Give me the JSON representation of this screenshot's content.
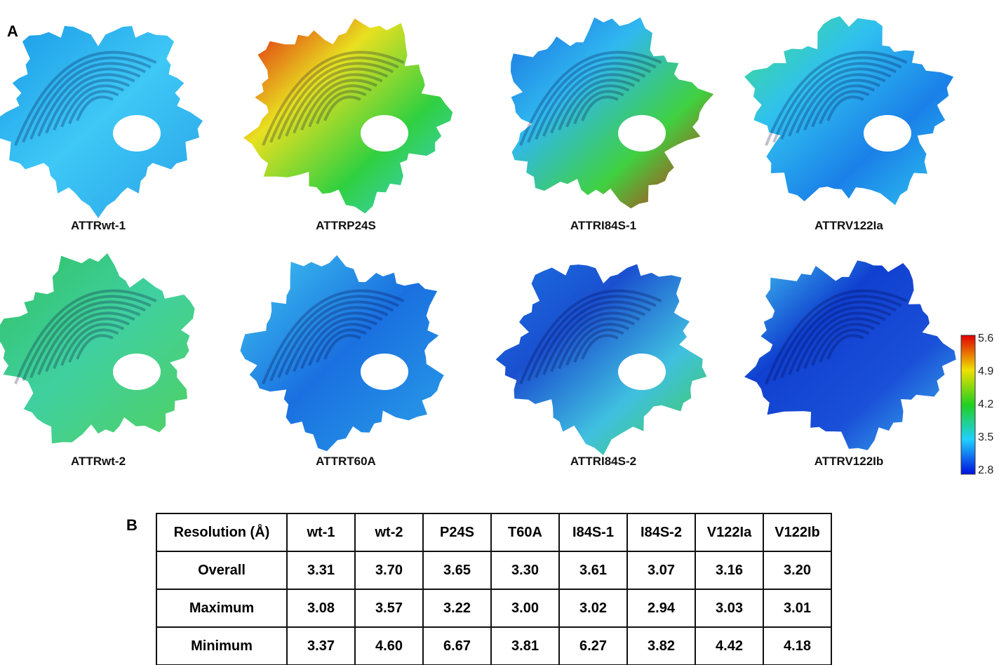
{
  "panel_a": {
    "label": "A",
    "maps": [
      {
        "label": "ATTRwt-1"
      },
      {
        "label": "ATTRP24S"
      },
      {
        "label": "ATTRI84S-1"
      },
      {
        "label": "ATTRV122Ia"
      },
      {
        "label": "ATTRwt-2"
      },
      {
        "label": "ATTRT60A"
      },
      {
        "label": "ATTRI84S-2"
      },
      {
        "label": "ATTRV122Ib"
      }
    ],
    "colorbar": {
      "ticks": [
        "5.6",
        "4.9",
        "4.2",
        "3.5",
        "2.8"
      ]
    }
  },
  "panel_b": {
    "label": "B",
    "table": {
      "header": [
        "Resolution (Å)",
        "wt-1",
        "wt-2",
        "P24S",
        "T60A",
        "I84S-1",
        "I84S-2",
        "V122Ia",
        "V122Ib"
      ],
      "rows": [
        [
          "Overall",
          "3.31",
          "3.70",
          "3.65",
          "3.30",
          "3.61",
          "3.07",
          "3.16",
          "3.20"
        ],
        [
          "Maximum",
          "3.08",
          "3.57",
          "3.22",
          "3.00",
          "3.02",
          "2.94",
          "3.03",
          "3.01"
        ],
        [
          "Minimum",
          "3.37",
          "4.60",
          "6.67",
          "3.81",
          "6.27",
          "3.82",
          "4.42",
          "4.18"
        ]
      ]
    }
  }
}
